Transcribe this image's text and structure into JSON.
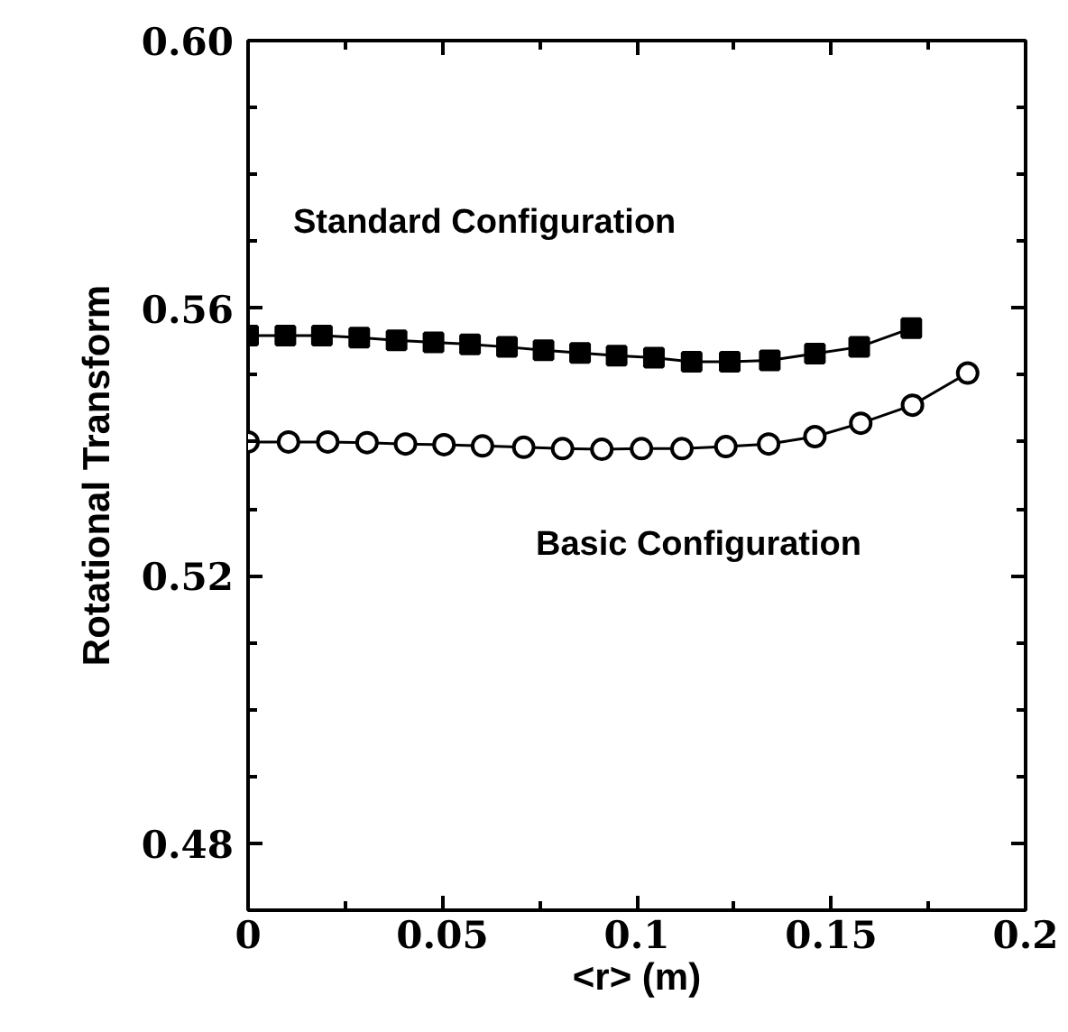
{
  "chart_data": {
    "type": "line",
    "xlabel": "<r> (m)",
    "ylabel": "Rotational Transform",
    "xlim": [
      0,
      0.2
    ],
    "ylim": [
      0.47,
      0.6
    ],
    "xticks": [
      0,
      0.05,
      0.1,
      0.15,
      0.2
    ],
    "yticks": [
      0.48,
      0.52,
      0.56,
      {
        "value": 0.6,
        "label": "0.60"
      }
    ],
    "grid": false,
    "legend": "top left",
    "line_style": "solid",
    "series": [
      {
        "name": "Standard Configuration",
        "color": "#000000",
        "marker": "square",
        "x": [
          0,
          0.0096,
          0.019,
          0.0286,
          0.0382,
          0.0477,
          0.0571,
          0.0666,
          0.076,
          0.0854,
          0.0948,
          0.1044,
          0.1141,
          0.1239,
          0.1342,
          0.1458,
          0.1572,
          0.1706
        ],
        "values": [
          0.5559,
          0.5559,
          0.5559,
          0.5556,
          0.5552,
          0.5549,
          0.5546,
          0.5542,
          0.5537,
          0.5533,
          0.5529,
          0.5526,
          0.552,
          0.552,
          0.5522,
          0.5532,
          0.5542,
          0.557
        ]
      },
      {
        "name": "Basic Configuration",
        "color": "#000000",
        "marker": "circle",
        "x": [
          0,
          0.0104,
          0.0205,
          0.0306,
          0.0405,
          0.0504,
          0.0603,
          0.0709,
          0.0809,
          0.091,
          0.1012,
          0.1116,
          0.1229,
          0.1339,
          0.1458,
          0.1576,
          0.1709,
          0.1851
        ],
        "values": [
          0.54,
          0.54,
          0.54,
          0.5399,
          0.5397,
          0.5396,
          0.5394,
          0.5392,
          0.539,
          0.5389,
          0.539,
          0.539,
          0.5393,
          0.5397,
          0.5408,
          0.5428,
          0.5455,
          0.5503
        ]
      }
    ]
  }
}
